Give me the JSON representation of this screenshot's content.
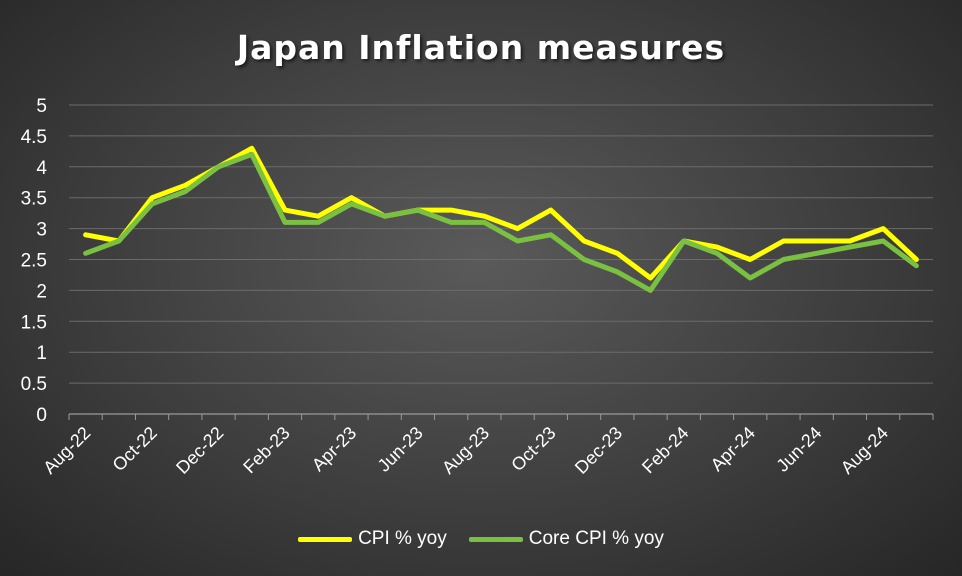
{
  "chart_data": {
    "type": "line",
    "title": "Japan Inflation measures",
    "xlabel": "",
    "ylabel": "",
    "ylim": [
      0,
      5
    ],
    "y_ticks": [
      "0",
      "0.5",
      "1",
      "1.5",
      "2",
      "2.5",
      "3",
      "3.5",
      "4",
      "4.5",
      "5"
    ],
    "x": [
      "Aug-22",
      "Sep-22",
      "Oct-22",
      "Nov-22",
      "Dec-22",
      "Jan-23",
      "Feb-23",
      "Mar-23",
      "Apr-23",
      "May-23",
      "Jun-23",
      "Jul-23",
      "Aug-23",
      "Sep-23",
      "Oct-23",
      "Nov-23",
      "Dec-23",
      "Jan-24",
      "Feb-24",
      "Mar-24",
      "Apr-24",
      "May-24",
      "Jun-24",
      "Jul-24",
      "Aug-24",
      "Sep-24"
    ],
    "x_tick_labels": [
      "Aug-22",
      "Oct-22",
      "Dec-22",
      "Feb-23",
      "Apr-23",
      "Jun-23",
      "Aug-23",
      "Oct-23",
      "Dec-23",
      "Feb-24",
      "Apr-24",
      "Jun-24",
      "Aug-24"
    ],
    "grid": true,
    "legend_position": "bottom",
    "series": [
      {
        "name": "CPI % yoy",
        "color": "#ffff00",
        "values": [
          2.9,
          2.8,
          3.5,
          3.7,
          4.0,
          4.3,
          3.3,
          3.2,
          3.5,
          3.2,
          3.3,
          3.3,
          3.2,
          3.0,
          3.3,
          2.8,
          2.6,
          2.2,
          2.8,
          2.7,
          2.5,
          2.8,
          2.8,
          2.8,
          3.0,
          2.5
        ]
      },
      {
        "name": "Core CPI % yoy",
        "color": "#7ac142",
        "values": [
          2.6,
          2.8,
          3.4,
          3.6,
          4.0,
          4.2,
          3.1,
          3.1,
          3.4,
          3.2,
          3.3,
          3.1,
          3.1,
          2.8,
          2.9,
          2.5,
          2.3,
          2.0,
          2.8,
          2.6,
          2.2,
          2.5,
          2.6,
          2.7,
          2.8,
          2.4
        ]
      }
    ]
  }
}
